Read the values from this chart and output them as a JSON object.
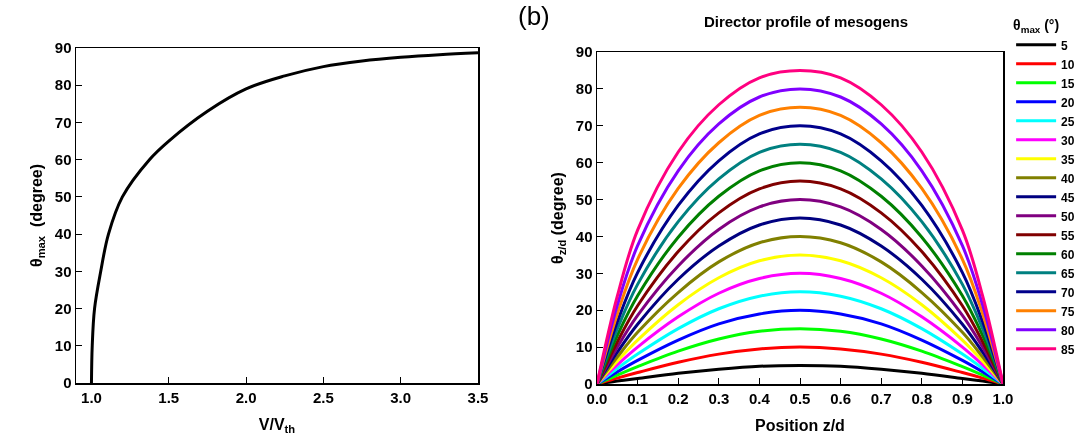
{
  "chart_data": [
    {
      "type": "line",
      "xlabel": "V/V$_{th}$",
      "ylabel": "θ$_{max}$  (degree)",
      "xlim": [
        0.9,
        3.5
      ],
      "ylim": [
        0,
        90
      ],
      "xticks": [
        {
          "value": 1,
          "label": "1.0"
        },
        1.5,
        {
          "value": 2,
          "label": "2.0"
        },
        2.5,
        {
          "value": 3,
          "label": "3.0"
        },
        3.5
      ],
      "yticks": [
        0,
        10,
        20,
        30,
        40,
        50,
        60,
        70,
        80,
        90
      ],
      "grid": false,
      "legend": false,
      "marker": "none",
      "line_style": "solid",
      "x": [
        1.0,
        1.005,
        1.02,
        1.06,
        1.11,
        1.2,
        1.375,
        1.5,
        1.75,
        2.0,
        2.25,
        2.5,
        2.75,
        3.0,
        3.25,
        3.5
      ],
      "series": [
        {
          "color": "#000000",
          "values": [
            0,
            10,
            20,
            30,
            40,
            50,
            60,
            65,
            73,
            79,
            82.5,
            85,
            86.5,
            87.5,
            88.2,
            88.7
          ]
        }
      ]
    },
    {
      "type": "line",
      "title": "Director profile of mesogens",
      "xlabel": "Position z/d",
      "ylabel": "θ$_{z/d}$ (degree)",
      "legend_title": "θ$_{max}$ (°)",
      "annotations": [
        "(b)"
      ],
      "xlim": [
        0,
        1
      ],
      "ylim": [
        0,
        90
      ],
      "xticks": [
        {
          "value": 0,
          "label": "0.0"
        },
        0.1,
        0.2,
        0.3,
        0.4,
        0.5,
        0.6,
        0.7,
        0.8,
        0.9,
        {
          "value": 1,
          "label": "1.0"
        }
      ],
      "yticks": [
        0,
        10,
        20,
        30,
        40,
        50,
        60,
        70,
        80,
        90
      ],
      "grid": false,
      "legend": "right",
      "marker": "none",
      "line_style": "solid",
      "x": [
        0,
        0.05,
        0.1,
        0.2,
        0.3,
        0.4,
        0.5,
        0.6,
        0.7,
        0.8,
        0.9,
        0.95,
        1
      ],
      "series": [
        {
          "name": "5",
          "color": "#000000",
          "values": [
            0,
            0.8,
            1.5,
            2.9,
            4,
            4.8,
            5,
            4.8,
            4,
            2.9,
            1.5,
            0.8,
            0
          ]
        },
        {
          "name": "10",
          "color": "#ff0000",
          "values": [
            0,
            1.6,
            3.1,
            5.9,
            8.1,
            9.5,
            10,
            9.5,
            8.1,
            5.9,
            3.1,
            1.6,
            0
          ]
        },
        {
          "name": "15",
          "color": "#00ff00",
          "values": [
            0,
            2.4,
            4.7,
            8.9,
            12.2,
            14.3,
            15,
            14.3,
            12.2,
            8.9,
            4.7,
            2.4,
            0
          ]
        },
        {
          "name": "20",
          "color": "#0000ff",
          "values": [
            0,
            3.3,
            6.4,
            11.9,
            16.3,
            19,
            20,
            19,
            16.3,
            11.9,
            6.4,
            3.3,
            0
          ]
        },
        {
          "name": "25",
          "color": "#00ffff",
          "values": [
            0,
            4.2,
            8.1,
            15,
            20.4,
            23.8,
            25,
            23.8,
            20.4,
            15,
            8.1,
            4.2,
            0
          ]
        },
        {
          "name": "30",
          "color": "#ff00ff",
          "values": [
            0,
            5.2,
            10,
            18.2,
            24.6,
            28.6,
            30,
            28.6,
            24.6,
            18.2,
            10,
            5.2,
            0
          ]
        },
        {
          "name": "35",
          "color": "#ffff00",
          "values": [
            0,
            6.2,
            11.9,
            21.5,
            28.8,
            33.4,
            35,
            33.4,
            28.8,
            21.5,
            11.9,
            6.2,
            0
          ]
        },
        {
          "name": "40",
          "color": "#808000",
          "values": [
            0,
            7.3,
            14,
            24.8,
            33.1,
            38.3,
            40,
            38.3,
            33.1,
            24.8,
            14,
            7.3,
            0
          ]
        },
        {
          "name": "45",
          "color": "#000080",
          "values": [
            0,
            8.6,
            16.2,
            28.4,
            37.4,
            43.1,
            45,
            43.1,
            37.4,
            28.4,
            16.2,
            8.6,
            0
          ]
        },
        {
          "name": "50",
          "color": "#800080",
          "values": [
            0,
            10,
            18.6,
            32,
            41.9,
            48,
            50,
            48,
            41.9,
            32,
            18.6,
            10,
            0
          ]
        },
        {
          "name": "55",
          "color": "#800000",
          "values": [
            0,
            11.4,
            21.2,
            35.9,
            46.4,
            52.9,
            55,
            52.9,
            46.4,
            35.9,
            21.2,
            11.4,
            0
          ]
        },
        {
          "name": "60",
          "color": "#008000",
          "values": [
            0,
            13.1,
            23.9,
            39.8,
            50.9,
            57.8,
            60,
            57.8,
            50.9,
            39.8,
            23.9,
            13.1,
            0
          ]
        },
        {
          "name": "65",
          "color": "#008080",
          "values": [
            0,
            14.9,
            27,
            44,
            55.6,
            62.8,
            65,
            62.8,
            55.6,
            44,
            27,
            14.9,
            0
          ]
        },
        {
          "name": "70",
          "color": "#00008b",
          "values": [
            0,
            16.8,
            30.2,
            48.4,
            60.5,
            67.8,
            70,
            67.8,
            60.5,
            48.4,
            30.2,
            16.8,
            0
          ]
        },
        {
          "name": "75",
          "color": "#ff8000",
          "values": [
            0,
            19,
            33.8,
            53,
            65.4,
            72.8,
            75,
            72.8,
            65.4,
            53,
            33.8,
            19,
            0
          ]
        },
        {
          "name": "80",
          "color": "#8000ff",
          "values": [
            0,
            21.3,
            37.5,
            57.8,
            70.5,
            77.8,
            80,
            77.8,
            70.5,
            57.8,
            37.5,
            21.3,
            0
          ]
        },
        {
          "name": "85",
          "color": "#ff0080",
          "values": [
            0,
            23.8,
            41.7,
            62.9,
            75.7,
            83,
            85,
            83,
            75.7,
            62.9,
            41.7,
            23.8,
            0
          ]
        }
      ]
    }
  ]
}
